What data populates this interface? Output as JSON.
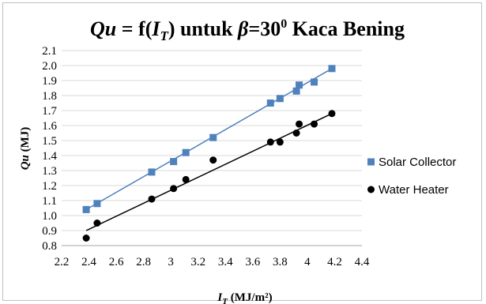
{
  "chart_data": {
    "type": "scatter",
    "title": {
      "pre": "Qu",
      "mid": " = f(",
      "it": "I",
      "sub": "T",
      "post": ") untuk ",
      "beta": "β",
      "eq": "=30",
      "sup": "0",
      "tail": " Kaca Bening"
    },
    "xlabel": {
      "it": "I",
      "sub": "T",
      "rest": " (MJ/m²)"
    },
    "ylabel": {
      "it": "Qu",
      "rest": " (MJ)"
    },
    "xlim": [
      2.2,
      4.4
    ],
    "ylim": [
      0.8,
      2.1
    ],
    "x_ticks": [
      "2.2",
      "2.4",
      "2.6",
      "2.8",
      "3",
      "3.2",
      "3.4",
      "3.6",
      "3.8",
      "4",
      "4.2",
      "4.4"
    ],
    "y_ticks": [
      "0.8",
      "0.9",
      "1.0",
      "1.1",
      "1.2",
      "1.3",
      "1.4",
      "1.5",
      "1.6",
      "1.7",
      "1.8",
      "1.9",
      "2.0",
      "2.1"
    ],
    "legend_position": "right",
    "series": [
      {
        "name": "Solar Collector",
        "marker": "square",
        "color": "#4f81bd",
        "x": [
          2.38,
          2.46,
          2.86,
          3.02,
          3.11,
          3.31,
          3.73,
          3.8,
          3.92,
          3.94,
          4.05,
          4.18
        ],
        "y": [
          1.04,
          1.08,
          1.29,
          1.36,
          1.42,
          1.52,
          1.75,
          1.78,
          1.83,
          1.87,
          1.89,
          1.98
        ],
        "trend": [
          [
            2.38,
            1.04
          ],
          [
            4.18,
            1.98
          ]
        ]
      },
      {
        "name": "Water Heater",
        "marker": "circle",
        "color": "#000000",
        "x": [
          2.38,
          2.46,
          2.86,
          3.02,
          3.11,
          3.31,
          3.73,
          3.8,
          3.92,
          3.94,
          4.05,
          4.18
        ],
        "y": [
          0.85,
          0.95,
          1.11,
          1.18,
          1.24,
          1.37,
          1.49,
          1.49,
          1.55,
          1.61,
          1.61,
          1.68
        ],
        "trend": [
          [
            2.38,
            0.9
          ],
          [
            4.18,
            1.68
          ]
        ]
      }
    ]
  }
}
